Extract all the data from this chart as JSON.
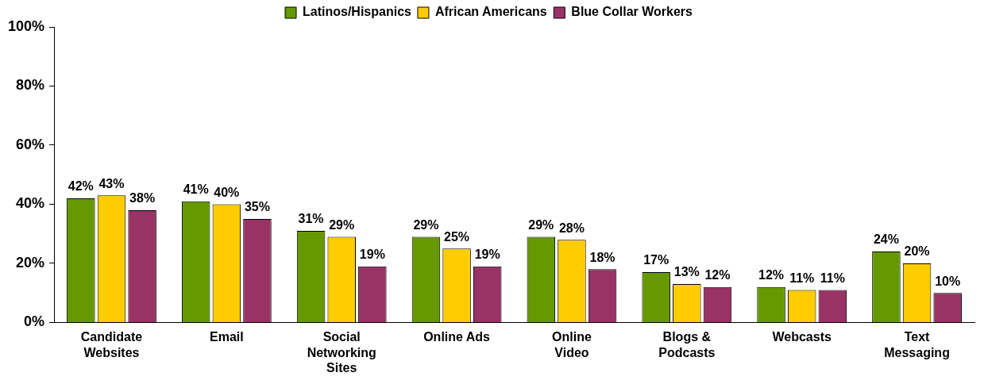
{
  "chart_data": {
    "type": "bar",
    "categories": [
      "Candidate Websites",
      "Email",
      "Social Networking Sites",
      "Online Ads",
      "Online Video",
      "Blogs & Podcasts",
      "Webcasts",
      "Text Messaging"
    ],
    "series": [
      {
        "name": "Latinos/Hispanics",
        "color": "#669900",
        "values": [
          42,
          41,
          31,
          29,
          29,
          17,
          12,
          24
        ],
        "value_labels": [
          "42%",
          "41%",
          "31%",
          "29%",
          "29%",
          "17%",
          "12%",
          "24%"
        ]
      },
      {
        "name": "African Americans",
        "color": "#ffcc00",
        "values": [
          43,
          40,
          29,
          25,
          28,
          13,
          11,
          20
        ],
        "value_labels": [
          "43%",
          "40%",
          "29%",
          "25%",
          "28%",
          "13%",
          "11%",
          "20%"
        ]
      },
      {
        "name": "Blue Collar Workers",
        "color": "#993366",
        "values": [
          38,
          35,
          19,
          19,
          18,
          12,
          11,
          10
        ],
        "value_labels": [
          "38%",
          "35%",
          "19%",
          "19%",
          "18%",
          "12%",
          "11%",
          "10%"
        ]
      }
    ],
    "ylim": [
      0,
      100
    ],
    "yticks": [
      {
        "value": 0,
        "label": "0%"
      },
      {
        "value": 20,
        "label": "20%"
      },
      {
        "value": 40,
        "label": "40%"
      },
      {
        "value": 60,
        "label": "60%"
      },
      {
        "value": 80,
        "label": "80%"
      },
      {
        "value": 100,
        "label": "100%"
      }
    ],
    "grid": false,
    "legend": "top"
  }
}
